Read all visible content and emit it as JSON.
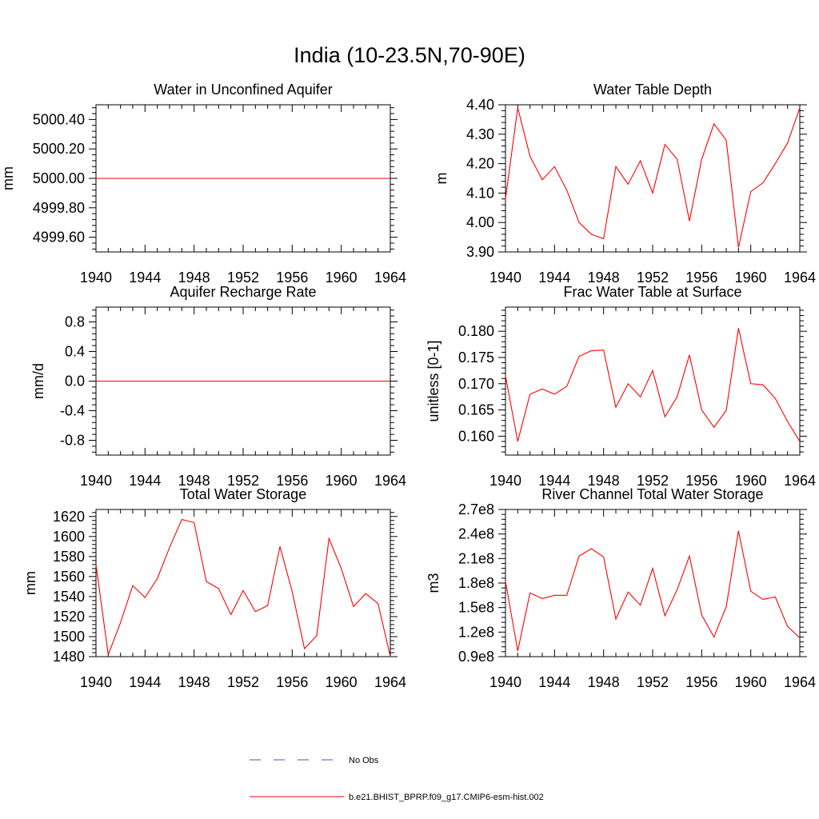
{
  "figure": {
    "title": "India (10-23.5N,70-90E)",
    "legend": [
      {
        "label": "No Obs",
        "style": "dashed",
        "color": "#4a5a9c"
      },
      {
        "label": "b.e21.BHIST_BPRP.f09_g17.CMIP6-esm-hist.002",
        "style": "solid",
        "color": "#ff0000"
      }
    ]
  },
  "chart_data": [
    {
      "type": "line",
      "title": "Water in Unconfined Aquifer",
      "ylabel": "mm",
      "xlim": [
        1940,
        1964
      ],
      "xticks": [
        1940,
        1944,
        1948,
        1952,
        1956,
        1960,
        1964
      ],
      "ylim": [
        4999.5,
        5000.5
      ],
      "yticks": [
        4999.6,
        4999.8,
        5000.0,
        5000.2,
        5000.4
      ],
      "ytick_labels": [
        "4999.60",
        "4999.80",
        "5000.00",
        "5000.20",
        "5000.40"
      ],
      "x": [
        1940,
        1941,
        1942,
        1943,
        1944,
        1945,
        1946,
        1947,
        1948,
        1949,
        1950,
        1951,
        1952,
        1953,
        1954,
        1955,
        1956,
        1957,
        1958,
        1959,
        1960,
        1961,
        1962,
        1963,
        1964
      ],
      "series": [
        {
          "values": [
            5000,
            5000,
            5000,
            5000,
            5000,
            5000,
            5000,
            5000,
            5000,
            5000,
            5000,
            5000,
            5000,
            5000,
            5000,
            5000,
            5000,
            5000,
            5000,
            5000,
            5000,
            5000,
            5000,
            5000,
            5000
          ],
          "color": "#ff0000"
        }
      ]
    },
    {
      "type": "line",
      "title": "Water Table Depth",
      "ylabel": "m",
      "xlim": [
        1940,
        1964
      ],
      "xticks": [
        1940,
        1944,
        1948,
        1952,
        1956,
        1960,
        1964
      ],
      "ylim": [
        3.9,
        4.4
      ],
      "yticks": [
        3.9,
        4.0,
        4.1,
        4.2,
        4.3,
        4.4
      ],
      "ytick_labels": [
        "3.90",
        "4.00",
        "4.10",
        "4.20",
        "4.30",
        "4.40"
      ],
      "x": [
        1940,
        1941,
        1942,
        1943,
        1944,
        1945,
        1946,
        1947,
        1948,
        1949,
        1950,
        1951,
        1952,
        1953,
        1954,
        1955,
        1956,
        1957,
        1958,
        1959,
        1960,
        1961,
        1962,
        1963,
        1964
      ],
      "series": [
        {
          "values": [
            4.08,
            4.39,
            4.225,
            4.145,
            4.19,
            4.11,
            4.0,
            3.96,
            3.945,
            4.19,
            4.13,
            4.21,
            4.1,
            4.265,
            4.215,
            4.005,
            4.215,
            4.335,
            4.28,
            3.915,
            4.105,
            4.135,
            4.2,
            4.27,
            4.39
          ],
          "color": "#ff0000"
        }
      ]
    },
    {
      "type": "line",
      "title": "Aquifer Recharge Rate",
      "ylabel": "mm/d",
      "xlim": [
        1940,
        1964
      ],
      "xticks": [
        1940,
        1944,
        1948,
        1952,
        1956,
        1960,
        1964
      ],
      "ylim": [
        -1.0,
        1.0
      ],
      "yticks": [
        -0.8,
        -0.4,
        0.0,
        0.4,
        0.8
      ],
      "ytick_labels": [
        "-0.8",
        "-0.4",
        "0.0",
        "0.4",
        "0.8"
      ],
      "x": [
        1940,
        1941,
        1942,
        1943,
        1944,
        1945,
        1946,
        1947,
        1948,
        1949,
        1950,
        1951,
        1952,
        1953,
        1954,
        1955,
        1956,
        1957,
        1958,
        1959,
        1960,
        1961,
        1962,
        1963,
        1964
      ],
      "series": [
        {
          "values": [
            0,
            0,
            0,
            0,
            0,
            0,
            0,
            0,
            0,
            0,
            0,
            0,
            0,
            0,
            0,
            0,
            0,
            0,
            0,
            0,
            0,
            0,
            0,
            0,
            0
          ],
          "color": "#ff0000"
        }
      ]
    },
    {
      "type": "line",
      "title": "Frac Water Table at Surface",
      "ylabel": "unitless [0-1]",
      "xlim": [
        1940,
        1964
      ],
      "xticks": [
        1940,
        1944,
        1948,
        1952,
        1956,
        1960,
        1964
      ],
      "ylim": [
        0.1564,
        0.1846
      ],
      "yticks": [
        0.16,
        0.165,
        0.17,
        0.175,
        0.18
      ],
      "ytick_labels": [
        "0.160",
        "0.165",
        "0.170",
        "0.175",
        "0.180"
      ],
      "x": [
        1940,
        1941,
        1942,
        1943,
        1944,
        1945,
        1946,
        1947,
        1948,
        1949,
        1950,
        1951,
        1952,
        1953,
        1954,
        1955,
        1956,
        1957,
        1958,
        1959,
        1960,
        1961,
        1962,
        1963,
        1964
      ],
      "series": [
        {
          "values": [
            0.1715,
            0.159,
            0.168,
            0.169,
            0.168,
            0.1695,
            0.1752,
            0.1763,
            0.1764,
            0.1655,
            0.17,
            0.1675,
            0.1725,
            0.1637,
            0.1675,
            0.1755,
            0.165,
            0.1617,
            0.1649,
            0.1806,
            0.17,
            0.1698,
            0.1672,
            0.1628,
            0.159
          ],
          "color": "#ff0000"
        }
      ]
    },
    {
      "type": "line",
      "title": "Total Water Storage",
      "ylabel": "mm",
      "xlim": [
        1940,
        1964
      ],
      "xticks": [
        1940,
        1944,
        1948,
        1952,
        1956,
        1960,
        1964
      ],
      "ylim": [
        1480,
        1627
      ],
      "yticks": [
        1480,
        1500,
        1520,
        1540,
        1560,
        1580,
        1600,
        1620
      ],
      "ytick_labels": [
        "1480",
        "1500",
        "1520",
        "1540",
        "1560",
        "1580",
        "1600",
        "1620"
      ],
      "x": [
        1940,
        1941,
        1942,
        1943,
        1944,
        1945,
        1946,
        1947,
        1948,
        1949,
        1950,
        1951,
        1952,
        1953,
        1954,
        1955,
        1956,
        1957,
        1958,
        1959,
        1960,
        1961,
        1962,
        1963,
        1964
      ],
      "series": [
        {
          "values": [
            1572,
            1482,
            1514,
            1551,
            1539,
            1558,
            1589,
            1617,
            1614,
            1555,
            1548,
            1522,
            1546,
            1525,
            1531,
            1590,
            1545,
            1488,
            1501,
            1598,
            1568,
            1530,
            1543,
            1533,
            1480
          ],
          "color": "#ff0000"
        }
      ]
    },
    {
      "type": "line",
      "title": "River Channel Total Water Storage",
      "ylabel": "m3",
      "xlim": [
        1940,
        1964
      ],
      "xticks": [
        1940,
        1944,
        1948,
        1952,
        1956,
        1960,
        1964
      ],
      "ylim": [
        90000000,
        270000000
      ],
      "yticks": [
        90000000,
        120000000,
        150000000,
        180000000,
        210000000,
        240000000,
        270000000
      ],
      "ytick_labels": [
        "0.9e8",
        "1.2e8",
        "1.5e8",
        "1.8e8",
        "2.1e8",
        "2.4e8",
        "2.7e8"
      ],
      "x": [
        1940,
        1941,
        1942,
        1943,
        1944,
        1945,
        1946,
        1947,
        1948,
        1949,
        1950,
        1951,
        1952,
        1953,
        1954,
        1955,
        1956,
        1957,
        1958,
        1959,
        1960,
        1961,
        1962,
        1963,
        1964
      ],
      "series": [
        {
          "values": [
            182000000,
            97000000,
            168000000,
            161000000,
            165000000,
            165000000,
            213000000,
            222000000,
            212000000,
            136000000,
            169000000,
            153000000,
            198000000,
            140000000,
            172000000,
            213000000,
            141000000,
            114000000,
            151000000,
            244000000,
            170000000,
            160000000,
            163000000,
            127000000,
            113000000
          ],
          "color": "#ff0000"
        }
      ]
    }
  ]
}
